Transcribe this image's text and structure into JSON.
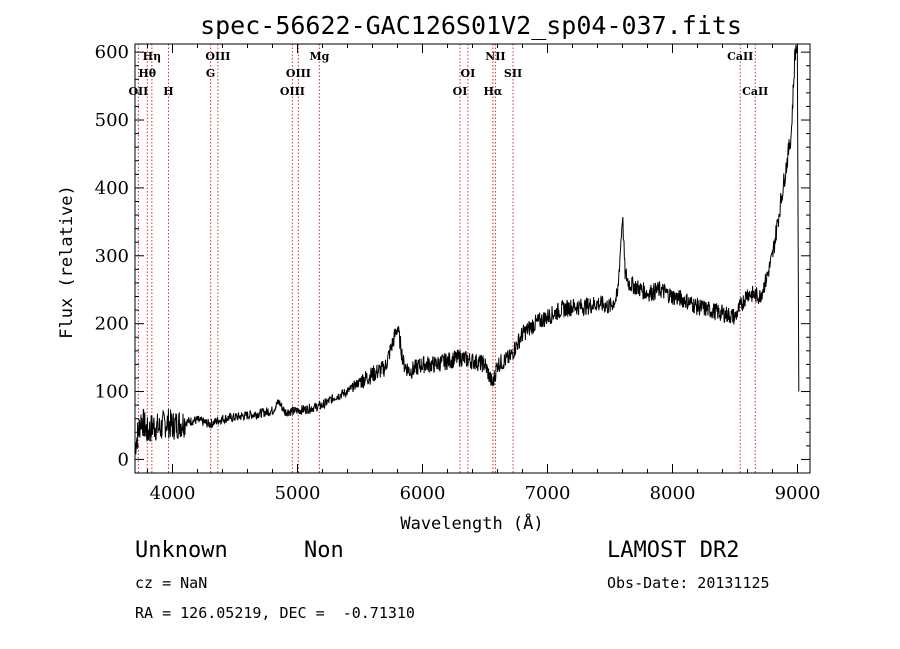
{
  "chart_data": {
    "type": "line",
    "title": "spec-56622-GAC126S01V2_sp04-037.fits",
    "xlabel": "Wavelength (Å)",
    "ylabel": "Flux (relative)",
    "xlim": [
      3700,
      9100
    ],
    "ylim": [
      -20,
      612
    ],
    "x_ticks": [
      4000,
      5000,
      6000,
      7000,
      8000,
      9000
    ],
    "y_ticks": [
      0,
      100,
      200,
      300,
      400,
      500,
      600
    ],
    "grid": false,
    "series": [
      {
        "x": [
          3700,
          3750,
          3800,
          3850,
          3900,
          3950,
          4000,
          4100,
          4200,
          4300,
          4400,
          4500,
          4600,
          4700,
          4800,
          4850,
          4900,
          5000,
          5100,
          5200,
          5300,
          5400,
          5500,
          5600,
          5700,
          5750,
          5800,
          5850,
          5900,
          5950,
          6000,
          6100,
          6200,
          6300,
          6400,
          6500,
          6560,
          6600,
          6700,
          6800,
          6900,
          7000,
          7100,
          7200,
          7300,
          7400,
          7500,
          7560,
          7600,
          7620,
          7650,
          7700,
          7800,
          7900,
          8000,
          8100,
          8200,
          8300,
          8400,
          8500,
          8600,
          8700,
          8750,
          8800,
          8850,
          8900,
          8950,
          8980,
          9000,
          9010
        ],
        "y": [
          20,
          60,
          40,
          50,
          45,
          55,
          50,
          55,
          58,
          52,
          60,
          62,
          65,
          68,
          72,
          85,
          70,
          72,
          75,
          80,
          92,
          100,
          115,
          125,
          135,
          165,
          195,
          140,
          130,
          135,
          140,
          140,
          145,
          150,
          145,
          140,
          110,
          140,
          150,
          185,
          200,
          210,
          220,
          225,
          225,
          230,
          225,
          240,
          360,
          275,
          260,
          255,
          245,
          250,
          240,
          235,
          225,
          220,
          215,
          210,
          245,
          240,
          265,
          300,
          360,
          420,
          480,
          600,
          612,
          100
        ]
      }
    ],
    "lines": [
      {
        "label": "Hη",
        "x": 3835,
        "row": 0
      },
      {
        "label": "Hθ",
        "x": 3798,
        "row": 1
      },
      {
        "label": "OII",
        "x": 3727,
        "row": 2
      },
      {
        "label": "H",
        "x": 3968,
        "row": 2
      },
      {
        "label": "OIII",
        "x": 4363,
        "row": 0
      },
      {
        "label": "G",
        "x": 4305,
        "row": 1
      },
      {
        "label": "OIII",
        "x": 5007,
        "row": 1
      },
      {
        "label": "OIII",
        "x": 4959,
        "row": 2
      },
      {
        "label": "Mg",
        "x": 5175,
        "row": 0
      },
      {
        "label": "OI",
        "x": 6363,
        "row": 1
      },
      {
        "label": "OI",
        "x": 6300,
        "row": 2
      },
      {
        "label": "NII",
        "x": 6583,
        "row": 0
      },
      {
        "label": "Hα",
        "x": 6563,
        "row": 2
      },
      {
        "label": "SII",
        "x": 6724,
        "row": 1
      },
      {
        "label": "CaII",
        "x": 8542,
        "row": 0
      },
      {
        "label": "CaII",
        "x": 8662,
        "row": 2
      }
    ]
  },
  "info": {
    "class": "Unknown",
    "subclass": "Non",
    "cz": "cz = NaN",
    "radec": "RA = 126.05219, DEC =  -0.71310",
    "survey": "LAMOST DR2",
    "obsdate": "Obs-Date: 20131125"
  },
  "colors": {
    "spectrum": "#000000",
    "line_markers": "#cc3333"
  }
}
